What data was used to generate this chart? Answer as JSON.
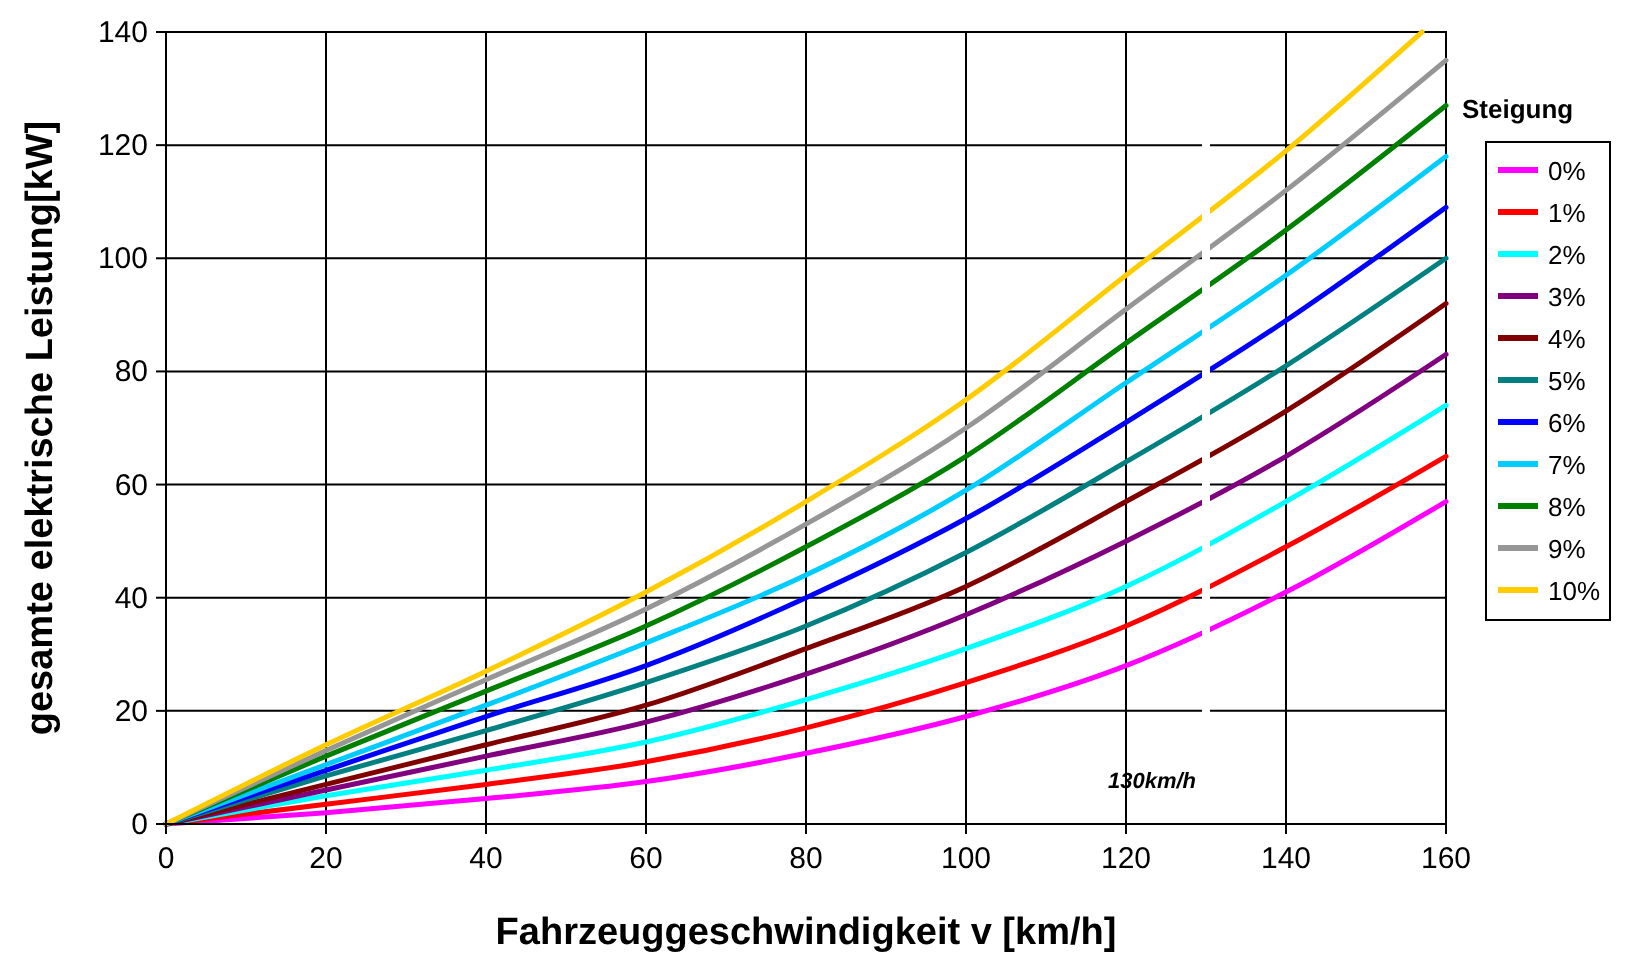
{
  "chart_data": {
    "type": "line",
    "xlabel": "Fahrzeuggeschwindigkeit v [km/h]",
    "ylabel": "gesamte elektrische Leistung[kW]",
    "legend_title": "Steigung",
    "legend": "right",
    "grid": true,
    "marker": "none",
    "line_style": "solid",
    "x": [
      0,
      20,
      40,
      60,
      80,
      100,
      120,
      140,
      160
    ],
    "xlim": [
      0,
      160
    ],
    "xticks": [
      0,
      20,
      40,
      60,
      80,
      100,
      120,
      140,
      160
    ],
    "ylim": [
      0,
      140
    ],
    "yticks": [
      0,
      20,
      40,
      60,
      80,
      100,
      120,
      140
    ],
    "ref_lines": [
      {
        "axis": "x",
        "value": 130,
        "label": "130km/h",
        "color": "#ffffff"
      }
    ],
    "series": [
      {
        "name": "0%",
        "color": "#ff00ff",
        "values": [
          0,
          2,
          4.5,
          7.5,
          12.5,
          19,
          28,
          41,
          57
        ]
      },
      {
        "name": "1%",
        "color": "#ff0000",
        "values": [
          0,
          3.5,
          7,
          11,
          17,
          25,
          35,
          49,
          65
        ]
      },
      {
        "name": "2%",
        "color": "#00ffff",
        "values": [
          0,
          5,
          9.5,
          14.5,
          22,
          31,
          42,
          57,
          74
        ]
      },
      {
        "name": "3%",
        "color": "#800080",
        "values": [
          0,
          6,
          12,
          18,
          26.5,
          37,
          50,
          65,
          83
        ]
      },
      {
        "name": "4%",
        "color": "#800000",
        "values": [
          0,
          7,
          14,
          21,
          31,
          42,
          57,
          73,
          92
        ]
      },
      {
        "name": "5%",
        "color": "#008080",
        "values": [
          0,
          8.5,
          16.5,
          25,
          35,
          48,
          64,
          81,
          100
        ]
      },
      {
        "name": "6%",
        "color": "#0000ff",
        "values": [
          0,
          9.5,
          19,
          28,
          40,
          54,
          71,
          89,
          109
        ]
      },
      {
        "name": "7%",
        "color": "#00ccff",
        "values": [
          0,
          10.5,
          21,
          32,
          44,
          59,
          78,
          97,
          118
        ]
      },
      {
        "name": "8%",
        "color": "#008000",
        "values": [
          0,
          12,
          23.5,
          35,
          49,
          65,
          85,
          105,
          127
        ]
      },
      {
        "name": "9%",
        "color": "#969696",
        "values": [
          0,
          13,
          25.5,
          38,
          53,
          70,
          91,
          112,
          135
        ]
      },
      {
        "name": "10%",
        "color": "#ffcc00",
        "x": [
          0,
          20,
          40,
          60,
          80,
          100,
          120,
          140,
          157
        ],
        "values": [
          0,
          14,
          27,
          41,
          57,
          75,
          97,
          119,
          140
        ]
      }
    ]
  }
}
